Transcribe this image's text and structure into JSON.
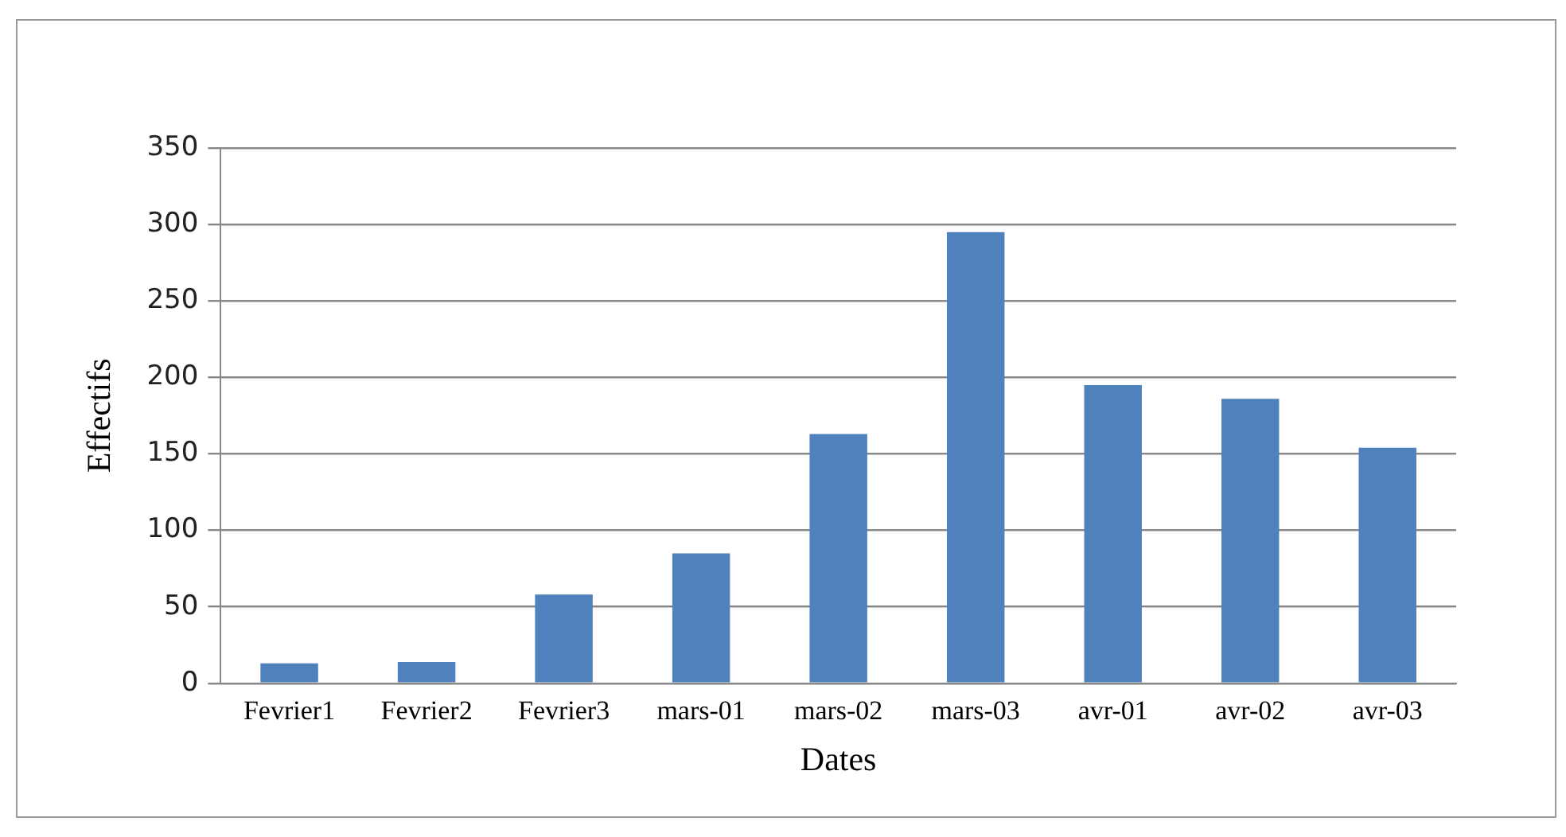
{
  "chart_data": {
    "type": "bar",
    "xlabel": "Dates",
    "ylabel": "Effectifs",
    "categories": [
      "Fevrier1",
      "Fevrier2",
      "Fevrier3",
      "mars-01",
      "mars-02",
      "mars-03",
      "avr-01",
      "avr-02",
      "avr-03"
    ],
    "values": [
      13,
      14,
      58,
      85,
      163,
      295,
      195,
      186,
      154
    ],
    "color": "#4f81bd",
    "ylim": [
      0,
      350
    ],
    "yticks": [
      0,
      50,
      100,
      150,
      200,
      250,
      300,
      350
    ],
    "grid": "y",
    "legend": false
  }
}
